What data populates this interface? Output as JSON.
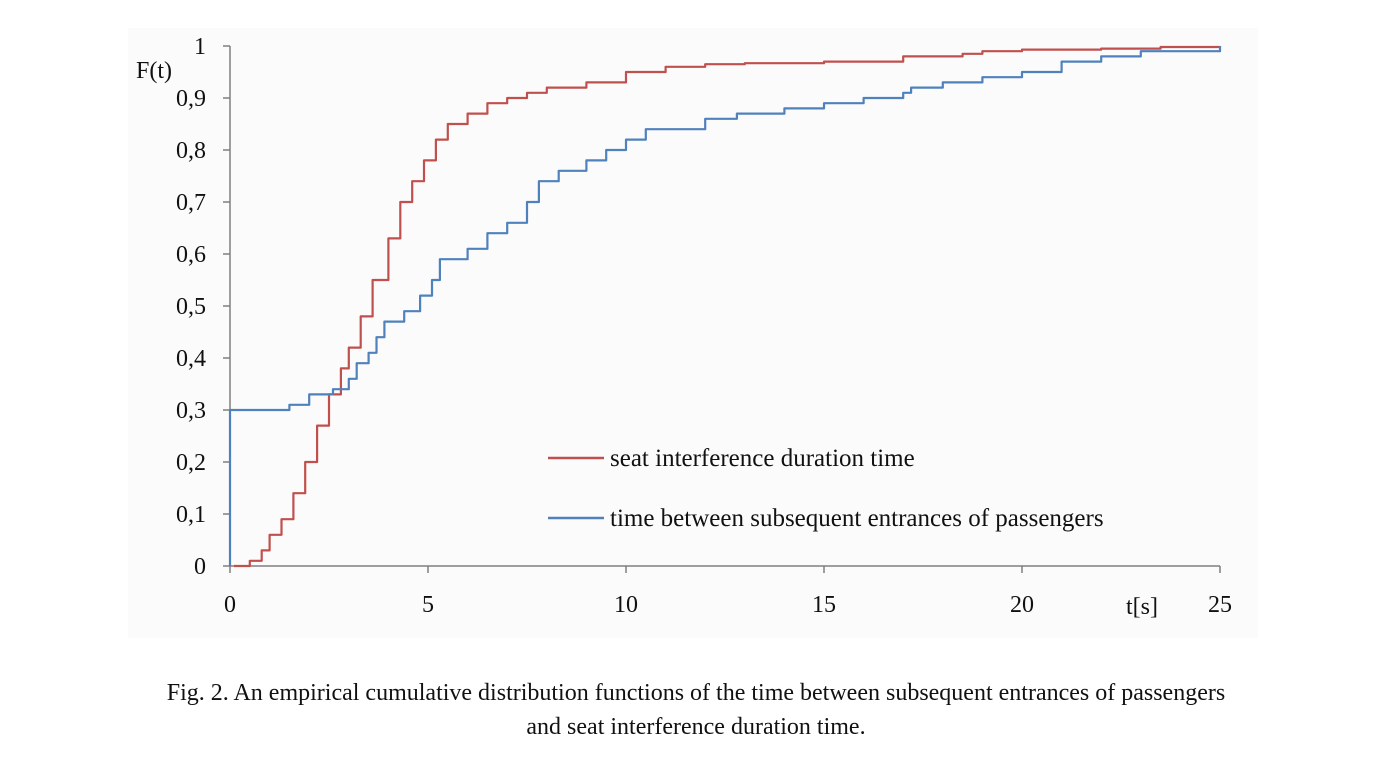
{
  "chart_data": {
    "type": "line",
    "title": "",
    "xlabel": "t[s]",
    "ylabel": "F(t)",
    "xlim": [
      0,
      25
    ],
    "ylim": [
      0,
      1
    ],
    "x_ticks": [
      0,
      5,
      10,
      15,
      20,
      25
    ],
    "x_tick_labels": [
      "0",
      "5",
      "10",
      "15",
      "20",
      "25"
    ],
    "y_ticks": [
      0,
      0.1,
      0.2,
      0.3,
      0.4,
      0.5,
      0.6,
      0.7,
      0.8,
      0.9,
      1
    ],
    "y_tick_labels": [
      "0",
      "0,1",
      "0,2",
      "0,3",
      "0,4",
      "0,5",
      "0,6",
      "0,7",
      "0,8",
      "0,9",
      "1"
    ],
    "grid": false,
    "legend_position": "lower-right",
    "series": [
      {
        "name": "seat interference duration time",
        "color": "#c0504d",
        "x": [
          0.1,
          0.5,
          0.8,
          1.0,
          1.3,
          1.6,
          1.9,
          2.2,
          2.5,
          2.8,
          3.0,
          3.3,
          3.6,
          4.0,
          4.3,
          4.6,
          4.9,
          5.2,
          5.5,
          6.0,
          6.5,
          7.0,
          7.5,
          8.0,
          9.0,
          10.0,
          11.0,
          12.0,
          13.0,
          15.0,
          17.0,
          18.5,
          19.0,
          20.0,
          22.0,
          23.5,
          25.0
        ],
        "y": [
          0.0,
          0.01,
          0.03,
          0.06,
          0.09,
          0.14,
          0.2,
          0.27,
          0.33,
          0.38,
          0.42,
          0.48,
          0.55,
          0.63,
          0.7,
          0.74,
          0.78,
          0.82,
          0.85,
          0.87,
          0.89,
          0.9,
          0.91,
          0.92,
          0.93,
          0.95,
          0.96,
          0.965,
          0.967,
          0.97,
          0.98,
          0.985,
          0.99,
          0.993,
          0.995,
          0.998,
          1.0
        ]
      },
      {
        "name": "time between subsequent entrances of passengers",
        "color": "#4f81bd",
        "x": [
          0.0,
          0.0,
          1.5,
          2.0,
          2.6,
          3.0,
          3.2,
          3.5,
          3.7,
          3.9,
          4.4,
          4.8,
          5.1,
          5.3,
          6.0,
          6.5,
          7.0,
          7.5,
          7.8,
          8.3,
          9.0,
          9.5,
          10.0,
          10.5,
          12.0,
          12.8,
          14.0,
          15.0,
          16.0,
          17.0,
          17.2,
          18.0,
          19.0,
          20.0,
          21.0,
          22.0,
          23.0,
          25.0
        ],
        "y": [
          0.0,
          0.3,
          0.31,
          0.33,
          0.34,
          0.36,
          0.39,
          0.41,
          0.44,
          0.47,
          0.49,
          0.52,
          0.55,
          0.59,
          0.61,
          0.64,
          0.66,
          0.7,
          0.74,
          0.76,
          0.78,
          0.8,
          0.82,
          0.84,
          0.86,
          0.87,
          0.88,
          0.89,
          0.9,
          0.91,
          0.92,
          0.93,
          0.94,
          0.95,
          0.97,
          0.98,
          0.99,
          1.0
        ]
      }
    ]
  },
  "caption": {
    "line1": "Fig. 2. An empirical cumulative distribution functions of the time between subsequent entrances of passengers",
    "line2": "and seat interference duration time."
  }
}
